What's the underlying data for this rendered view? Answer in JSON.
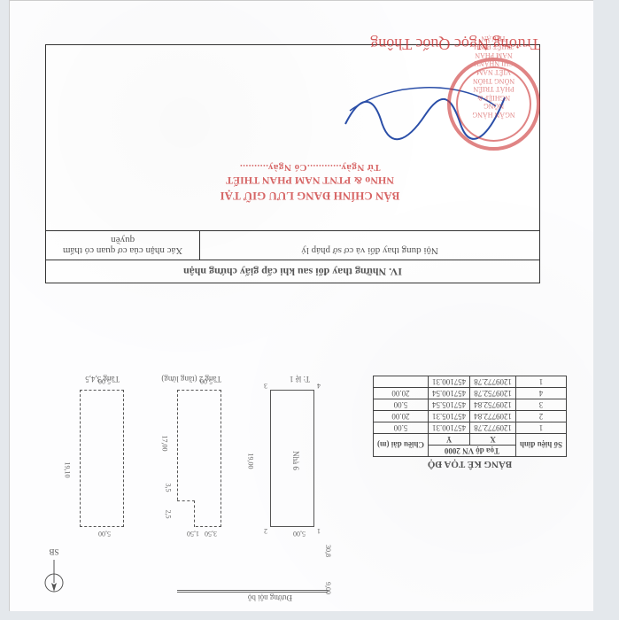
{
  "plan": {
    "road_label": "Đường nội bộ",
    "dist_v1": "9,00",
    "dist_v2": "30,8",
    "outline1_dim_top": "5,00",
    "outline1_dim_right": "19,00",
    "pt1": "1",
    "pt2": "2",
    "pt3": "3",
    "pt4": "4",
    "layer1": "T: lệ 1",
    "layer2": "Tầng 2 (tầng lửng)",
    "layer3": "Tầng 3,4,5",
    "dim2a": "2,5",
    "dim2b": "3,5",
    "dim2c": "17,00",
    "dim2d": "1,50",
    "dim2e": "3,50",
    "dim2f": "5,00",
    "dim3a": "19,10",
    "dim3b": "5,00",
    "dim3c": "5,00",
    "nha6": "Nhà 6"
  },
  "compass": {
    "label": "SB"
  },
  "coord_table": {
    "caption": "BẢNG KÊ TỌA ĐỘ",
    "head_sohieu": "Số hiệu\nđỉnh",
    "head_xy": "Tọa độ VN  2000",
    "head_x": "X",
    "head_y": "Y",
    "head_len": "Chiều dài\n(m)",
    "rows": [
      {
        "id": "1",
        "x": "1209772.78",
        "y": "457100.31",
        "len": "5.00"
      },
      {
        "id": "2",
        "x": "1209772.84",
        "y": "457105.31",
        "len": "20.00"
      },
      {
        "id": "3",
        "x": "1209752.84",
        "y": "457105.54",
        "len": "5.00"
      },
      {
        "id": "4",
        "x": "1209752.78",
        "y": "457100.54",
        "len": "20.00"
      },
      {
        "id": "1",
        "x": "1209772.78",
        "y": "457100.31",
        "len": ""
      }
    ]
  },
  "section4": {
    "title": "IV. Những thay đổi sau khi cấp giấy chứng nhận",
    "col1": "Nội dung thay đổi và cơ sở pháp lý",
    "col2": "Xác nhận của cơ quan\ncó thẩm quyền"
  },
  "stamp_text": {
    "line1": "BẢN CHÍNH ĐANG LƯU GIỮ TẠI",
    "line2": "NHNo & PTNT NAM PHAN THIẾT",
    "line3": "Từ Ngày............Có Ngày.........."
  },
  "round_stamp": {
    "inner": "NGÂN HÀNG\nNÔNG NGHIỆP &\nPHÁT TRIỂN NÔNG THÔN\nVIỆT NAM\nCHI NHÁNH\nNAM PHAN THIẾT\nBÌNH THUẬN"
  },
  "script_name": "Trương Ngọc Quốc Thông",
  "colors": {
    "ink": "#555555",
    "border": "#333333",
    "stamp_red": "#cc3333",
    "sign_blue": "#2a4ea8",
    "page_bg": "#fdfdfe",
    "outer_bg": "#e4e8ec"
  }
}
